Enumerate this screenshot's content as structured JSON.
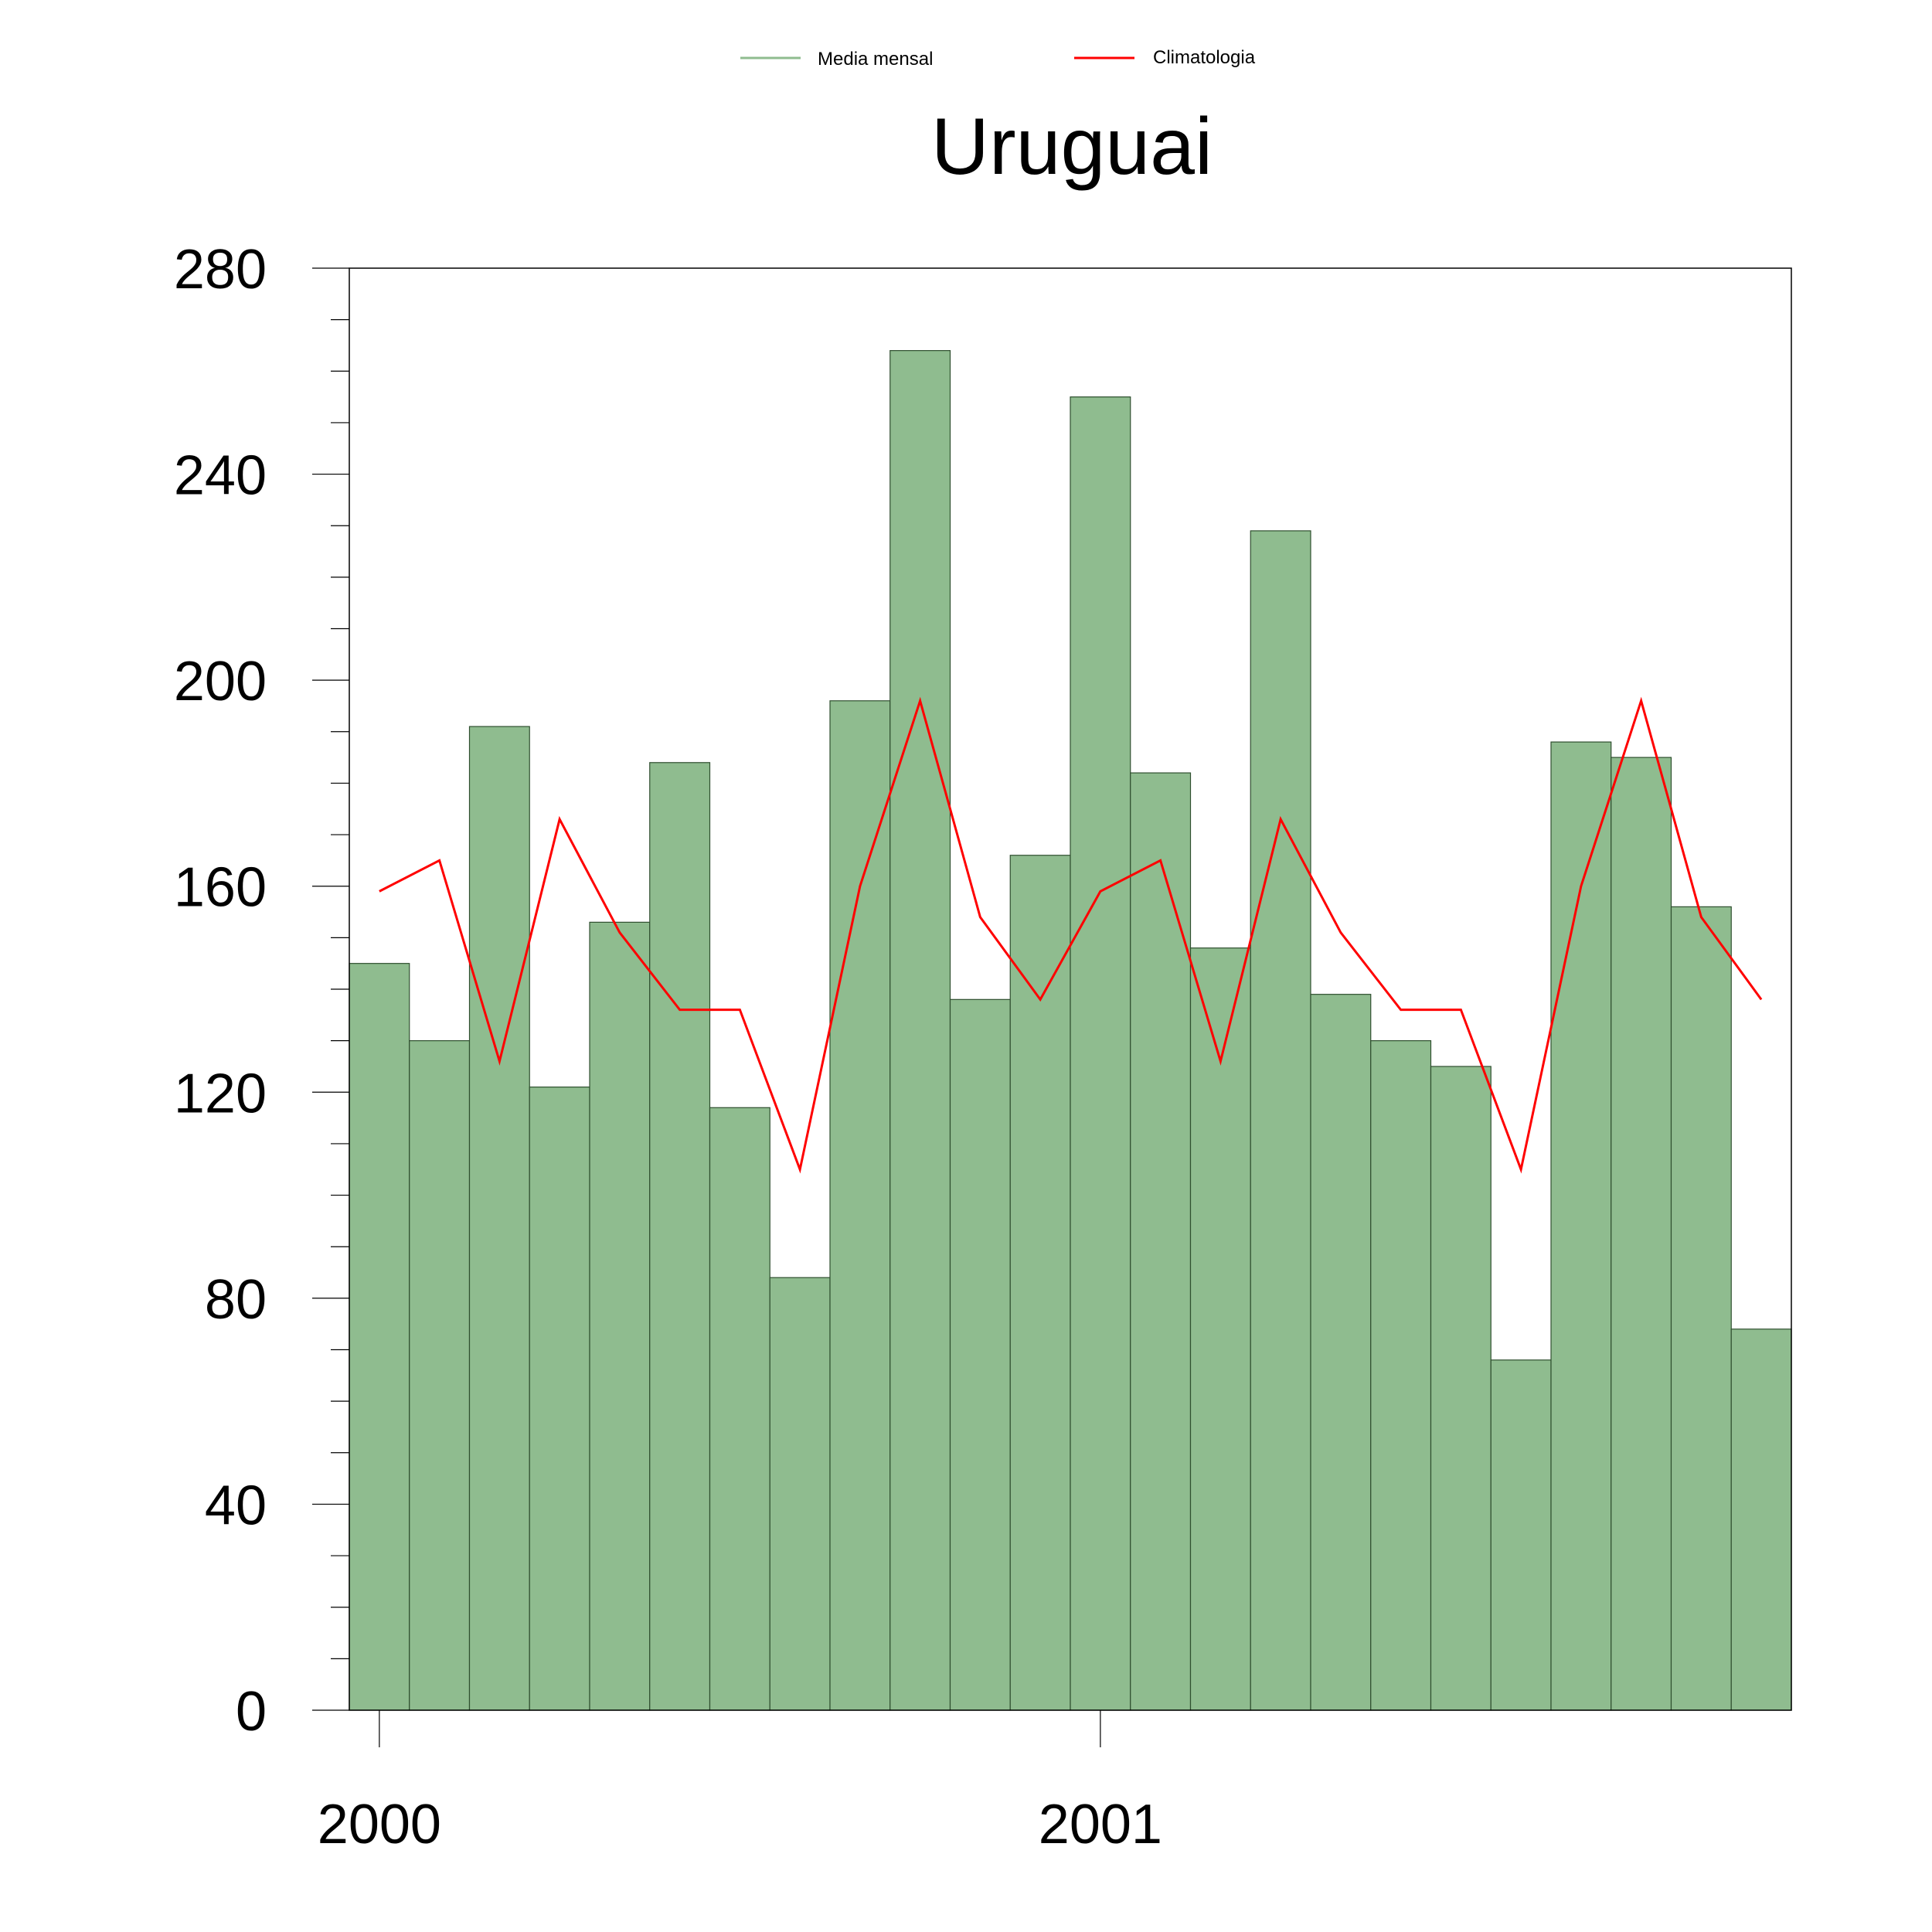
{
  "chart_data": {
    "type": "bar",
    "title": "Uruguai",
    "xlabel": "",
    "ylabel": "",
    "ylim": [
      0,
      280
    ],
    "yticks": [
      0,
      40,
      80,
      120,
      160,
      200,
      240,
      280
    ],
    "xticks": [
      {
        "index": 0,
        "label": "2000"
      },
      {
        "index": 12,
        "label": "2001"
      }
    ],
    "grid": false,
    "legend_position": "top-center",
    "series": [
      {
        "name": "Media mensal",
        "type": "bar",
        "color": "#8fbc8f",
        "values": [
          145,
          130,
          191,
          121,
          153,
          184,
          117,
          84,
          196,
          264,
          138,
          166,
          255,
          182,
          148,
          229,
          139,
          130,
          125,
          68,
          188,
          185,
          156,
          74
        ]
      },
      {
        "name": "Climatologia",
        "type": "line",
        "color": "#ff0000",
        "values": [
          159,
          165,
          126,
          173,
          151,
          136,
          136,
          105,
          160,
          196,
          154,
          138,
          159,
          165,
          126,
          173,
          151,
          136,
          136,
          105,
          160,
          196,
          154,
          138
        ]
      }
    ]
  }
}
